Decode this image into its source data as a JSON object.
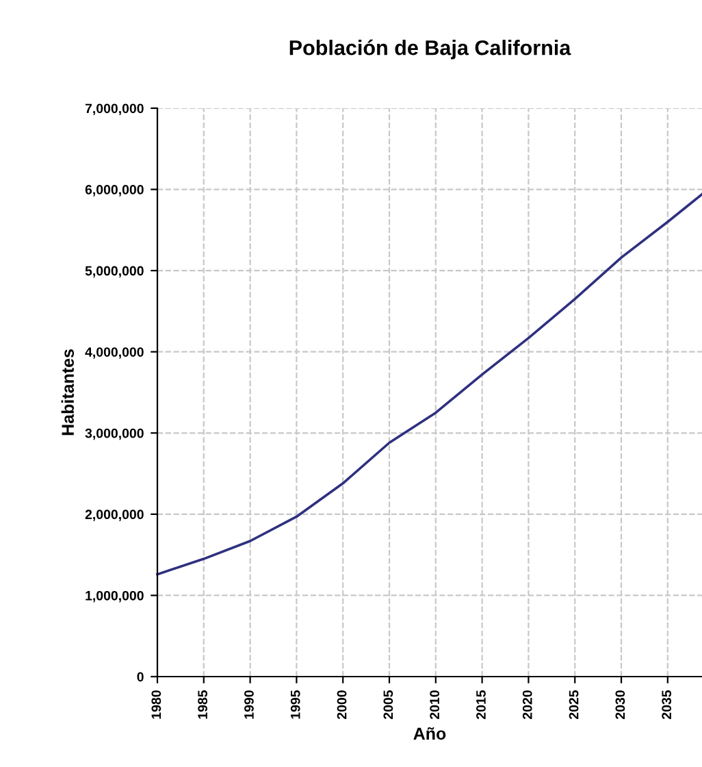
{
  "chart_data": {
    "type": "line",
    "title": "Población de Baja California",
    "xlabel": "Año",
    "ylabel": "Habitantes",
    "x": [
      1980,
      1985,
      1990,
      1995,
      2000,
      2005,
      2010,
      2015,
      2020,
      2025,
      2030,
      2035,
      2038.7
    ],
    "series": [
      {
        "color": "#2e3080",
        "values": [
          1260000,
          1450000,
          1670000,
          1970000,
          2380000,
          2880000,
          3250000,
          3720000,
          4170000,
          4650000,
          5160000,
          5600000,
          5940000
        ]
      }
    ],
    "xlim": [
      1980,
      2038.7
    ],
    "xticks": [
      1980,
      1985,
      1990,
      1995,
      2000,
      2005,
      2010,
      2015,
      2020,
      2025,
      2030,
      2035
    ],
    "ylim": [
      0,
      7000000
    ],
    "yticks": [
      {
        "value": 0,
        "label": "0"
      },
      {
        "value": 1000000,
        "label": "1,000,000"
      },
      {
        "value": 2000000,
        "label": "2,000,000"
      },
      {
        "value": 3000000,
        "label": "3,000,000"
      },
      {
        "value": 4000000,
        "label": "4,000,000"
      },
      {
        "value": 5000000,
        "label": "5,000,000"
      },
      {
        "value": 6000000,
        "label": "6,000,000"
      },
      {
        "value": 7000000,
        "label": "7,000,000"
      }
    ],
    "grid": true,
    "legend": false,
    "marker": "none",
    "line_style": "solid"
  }
}
